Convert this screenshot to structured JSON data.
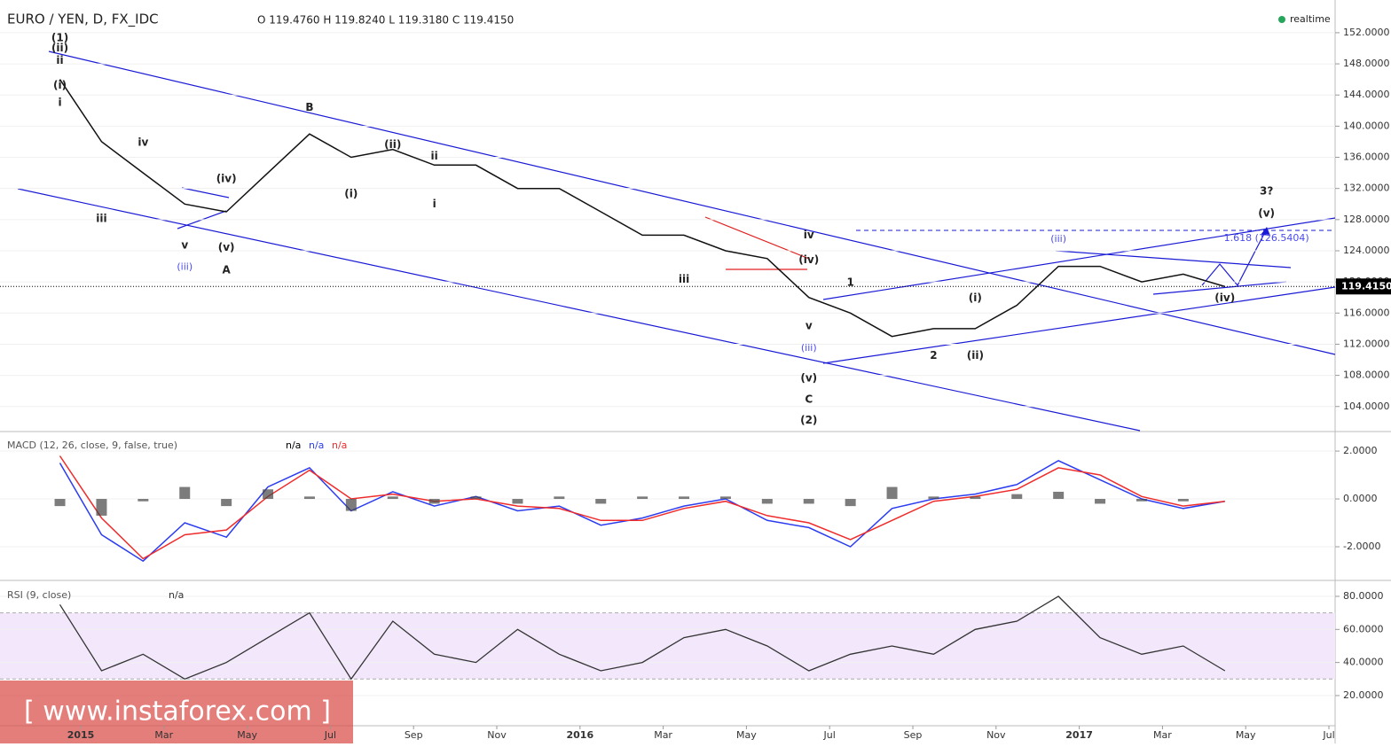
{
  "header": {
    "symbol": "EURO / YEN, D, FX_IDC",
    "ohlc": "O 119.4760 H 119.8240 L 119.3180 C 119.4150",
    "status": "realtime"
  },
  "watermark": "[ www.instaforex.com ]",
  "chart_data": [
    {
      "type": "line",
      "color": "#111111",
      "x": [
        "2014-12",
        "2015-01",
        "2015-02",
        "2015-03",
        "2015-04",
        "2015-05",
        "2015-06",
        "2015-07",
        "2015-08",
        "2015-09",
        "2015-10",
        "2015-11",
        "2015-12",
        "2016-01",
        "2016-02",
        "2016-03",
        "2016-04",
        "2016-05",
        "2016-06",
        "2016-07",
        "2016-08",
        "2016-09",
        "2016-10",
        "2016-11",
        "2016-12",
        "2017-01",
        "2017-02",
        "2017-03",
        "2017-04"
      ],
      "values": [
        146,
        138,
        134,
        130,
        129,
        134,
        139,
        136,
        137,
        135,
        135,
        132,
        132,
        129,
        126,
        126,
        124,
        123,
        118,
        116,
        113,
        114,
        114,
        117,
        122,
        122,
        120,
        121,
        119.4
      ],
      "ylim": [
        100.9,
        156.2
      ],
      "yticks": [
        {
          "value": 104,
          "label": "104.0000"
        },
        {
          "value": 108,
          "label": "108.0000"
        },
        {
          "value": 112,
          "label": "112.0000"
        },
        {
          "value": 116,
          "label": "116.0000"
        },
        {
          "value": 120,
          "label": "120.0000"
        },
        {
          "value": 124,
          "label": "124.0000"
        },
        {
          "value": 128,
          "label": "128.0000"
        },
        {
          "value": 132,
          "label": "132.0000"
        },
        {
          "value": 136,
          "label": "136.0000"
        },
        {
          "value": 140,
          "label": "140.0000"
        },
        {
          "value": 144,
          "label": "144.0000"
        },
        {
          "value": 148,
          "label": "148.0000"
        },
        {
          "value": 152,
          "label": "152.0000"
        }
      ],
      "last_price": {
        "value": 119.415,
        "label": "119.4150"
      },
      "annotations": [
        {
          "text": "(1)",
          "x": "2014-12",
          "y": 151.3
        },
        {
          "text": "(ii)",
          "x": "2014-12",
          "y": 150.0
        },
        {
          "text": "(i)",
          "x": "2014-12",
          "y": 145.2
        },
        {
          "text": "ii",
          "x": "2014-12",
          "y": 148.4
        },
        {
          "text": "i",
          "x": "2014-12",
          "y": 143.0
        },
        {
          "text": "iv",
          "x": "2015-02",
          "y": 137.9
        },
        {
          "text": "iii",
          "x": "2015-01",
          "y": 128.1
        },
        {
          "text": "v",
          "x": "2015-03",
          "y": 124.7
        },
        {
          "text": "(iii)",
          "x": "2015-03",
          "y": 121.9
        },
        {
          "text": "(iv)",
          "x": "2015-04",
          "y": 133.2
        },
        {
          "text": "(v)",
          "x": "2015-04",
          "y": 124.4
        },
        {
          "text": "A",
          "x": "2015-04",
          "y": 121.5
        },
        {
          "text": "B",
          "x": "2015-06",
          "y": 142.4
        },
        {
          "text": "(i)",
          "x": "2015-07",
          "y": 131.3
        },
        {
          "text": "(ii)",
          "x": "2015-08",
          "y": 137.6
        },
        {
          "text": "ii",
          "x": "2015-09",
          "y": 136.1
        },
        {
          "text": "i",
          "x": "2015-09",
          "y": 130.0
        },
        {
          "text": "iii",
          "x": "2016-03",
          "y": 120.3
        },
        {
          "text": "iv",
          "x": "2016-06",
          "y": 126.0
        },
        {
          "text": "(iv)",
          "x": "2016-06",
          "y": 122.8
        },
        {
          "text": "v",
          "x": "2016-06",
          "y": 114.3
        },
        {
          "text": "(iii)",
          "x": "2016-06",
          "y": 111.5
        },
        {
          "text": "(v)",
          "x": "2016-06",
          "y": 107.6
        },
        {
          "text": "C",
          "x": "2016-06",
          "y": 104.9
        },
        {
          "text": "(2)",
          "x": "2016-06",
          "y": 102.2
        },
        {
          "text": "1",
          "x": "2016-07",
          "y": 119.9
        },
        {
          "text": "2",
          "x": "2016-09",
          "y": 110.5
        },
        {
          "text": "(i)",
          "x": "2016-10",
          "y": 117.9
        },
        {
          "text": "(ii)",
          "x": "2016-10",
          "y": 110.5
        },
        {
          "text": "(iii)",
          "x": "2016-12",
          "y": 125.5
        },
        {
          "text": "(iv)",
          "x": "2017-04",
          "y": 117.9
        },
        {
          "text": "(v)",
          "x": "2017-05",
          "y": 128.8
        },
        {
          "text": "3?",
          "x": "2017-05",
          "y": 131.6
        },
        {
          "text": "1.618 (126.5404)",
          "x": "2017-05",
          "y": 125.6
        }
      ]
    },
    {
      "type": "macd",
      "title": "MACD (12, 26, close, 9, false, true)",
      "status": [
        "n/a",
        "n/a",
        "n/a"
      ],
      "series": [
        {
          "color": "#2b3cf0",
          "values": [
            1.5,
            -1.5,
            -2.6,
            -1.0,
            -1.6,
            0.5,
            1.3,
            -0.5,
            0.3,
            -0.3,
            0.1,
            -0.5,
            -0.3,
            -1.1,
            -0.8,
            -0.3,
            0.0,
            -0.9,
            -1.2,
            -2.0,
            -0.4,
            0.0,
            0.2,
            0.6,
            1.6,
            0.8,
            0.0,
            -0.4,
            -0.1
          ]
        },
        {
          "color": "#f02b2b",
          "values": [
            1.8,
            -0.8,
            -2.5,
            -1.5,
            -1.3,
            0.1,
            1.2,
            0.0,
            0.2,
            -0.1,
            0.0,
            -0.3,
            -0.4,
            -0.9,
            -0.9,
            -0.4,
            -0.1,
            -0.7,
            -1.0,
            -1.7,
            -0.9,
            -0.1,
            0.1,
            0.4,
            1.3,
            1.0,
            0.1,
            -0.3,
            -0.1
          ]
        },
        {
          "color": "#444444",
          "type": "bar",
          "values": [
            -0.3,
            -0.7,
            -0.1,
            0.5,
            -0.3,
            0.4,
            0.1,
            -0.5,
            0.1,
            -0.2,
            0.1,
            -0.2,
            0.1,
            -0.2,
            0.1,
            0.1,
            0.1,
            -0.2,
            -0.2,
            -0.3,
            0.5,
            0.1,
            0.1,
            0.2,
            0.3,
            -0.2,
            -0.1,
            -0.1,
            0.0
          ]
        }
      ],
      "ylim": [
        -3.37,
        2.78
      ],
      "yticks": [
        {
          "value": 2,
          "label": "2.0000"
        },
        {
          "value": 0,
          "label": "0.0000"
        },
        {
          "value": -2,
          "label": "-2.0000"
        }
      ]
    },
    {
      "type": "rsi",
      "title": "RSI (9, close)",
      "status": "n/a",
      "color": "#333333",
      "values": [
        75,
        35,
        45,
        30,
        40,
        55,
        70,
        30,
        65,
        45,
        40,
        60,
        45,
        35,
        40,
        55,
        60,
        50,
        35,
        45,
        50,
        45,
        60,
        65,
        80,
        55,
        45,
        50,
        35
      ],
      "band": [
        30,
        70
      ],
      "ylim": [
        2.3,
        89.1
      ],
      "yticks": [
        {
          "value": 20,
          "label": "20.0000"
        },
        {
          "value": 40,
          "label": "40.0000"
        },
        {
          "value": 60,
          "label": "60.0000"
        },
        {
          "value": 80,
          "label": "80.0000"
        }
      ],
      "xticks": [
        {
          "value": "2015-01",
          "label": "2015"
        },
        {
          "value": "2015-03",
          "label": "Mar"
        },
        {
          "value": "2015-05",
          "label": "May"
        },
        {
          "value": "2015-07",
          "label": "Jul"
        },
        {
          "value": "2015-09",
          "label": "Sep"
        },
        {
          "value": "2015-11",
          "label": "Nov"
        },
        {
          "value": "2016-01",
          "label": "2016"
        },
        {
          "value": "2016-03",
          "label": "Mar"
        },
        {
          "value": "2016-05",
          "label": "May"
        },
        {
          "value": "2016-07",
          "label": "Jul"
        },
        {
          "value": "2016-09",
          "label": "Sep"
        },
        {
          "value": "2016-11",
          "label": "Nov"
        },
        {
          "value": "2017-01",
          "label": "2017"
        },
        {
          "value": "2017-03",
          "label": "Mar"
        },
        {
          "value": "2017-05",
          "label": "May"
        },
        {
          "value": "2017-07",
          "label": "Jul"
        }
      ]
    }
  ]
}
